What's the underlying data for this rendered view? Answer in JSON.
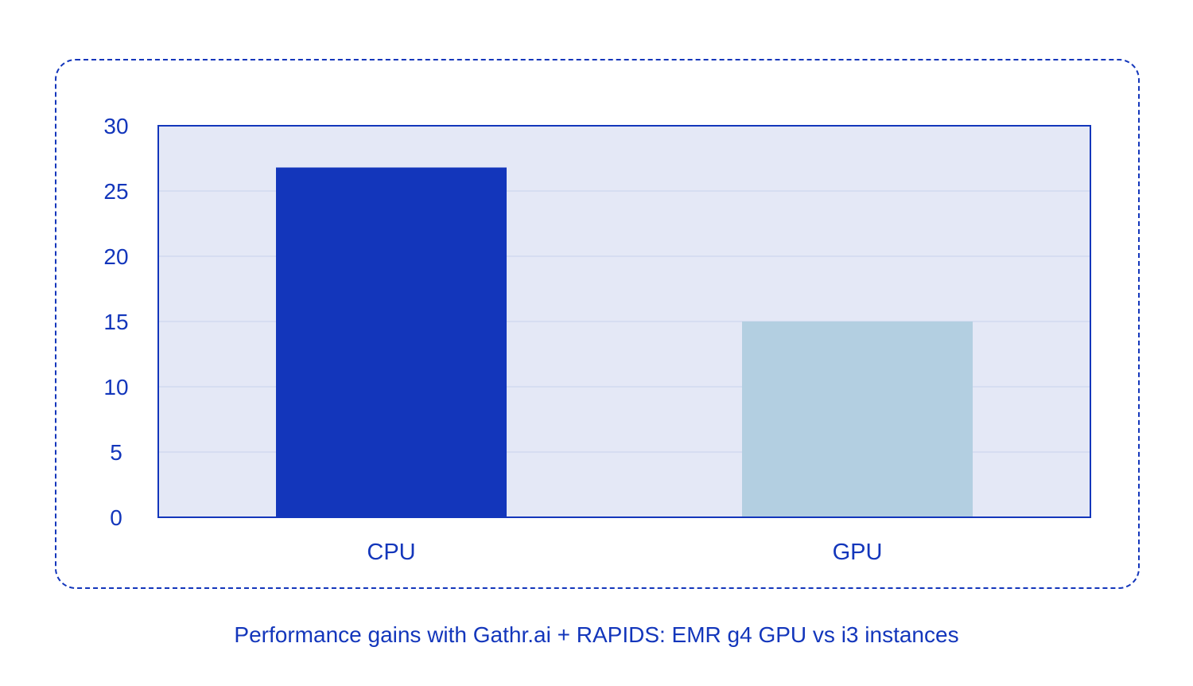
{
  "caption": "Performance gains with Gathr.ai + RAPIDS: EMR g4 GPU vs i3 instances",
  "colors": {
    "accent": "#1336bb",
    "plot_bg": "#e4e8f6",
    "grid": "#c9d2ec",
    "cpu_bar": "#1336bb",
    "gpu_bar": "#b3cfe1"
  },
  "chart_data": {
    "type": "bar",
    "title": "",
    "xlabel": "",
    "ylabel": "",
    "categories": [
      "CPU",
      "GPU"
    ],
    "values": [
      26.8,
      15
    ],
    "ylim": [
      0,
      30
    ],
    "yticks": [
      0,
      5,
      10,
      15,
      20,
      25,
      30
    ],
    "grid": true,
    "legend": "none"
  }
}
